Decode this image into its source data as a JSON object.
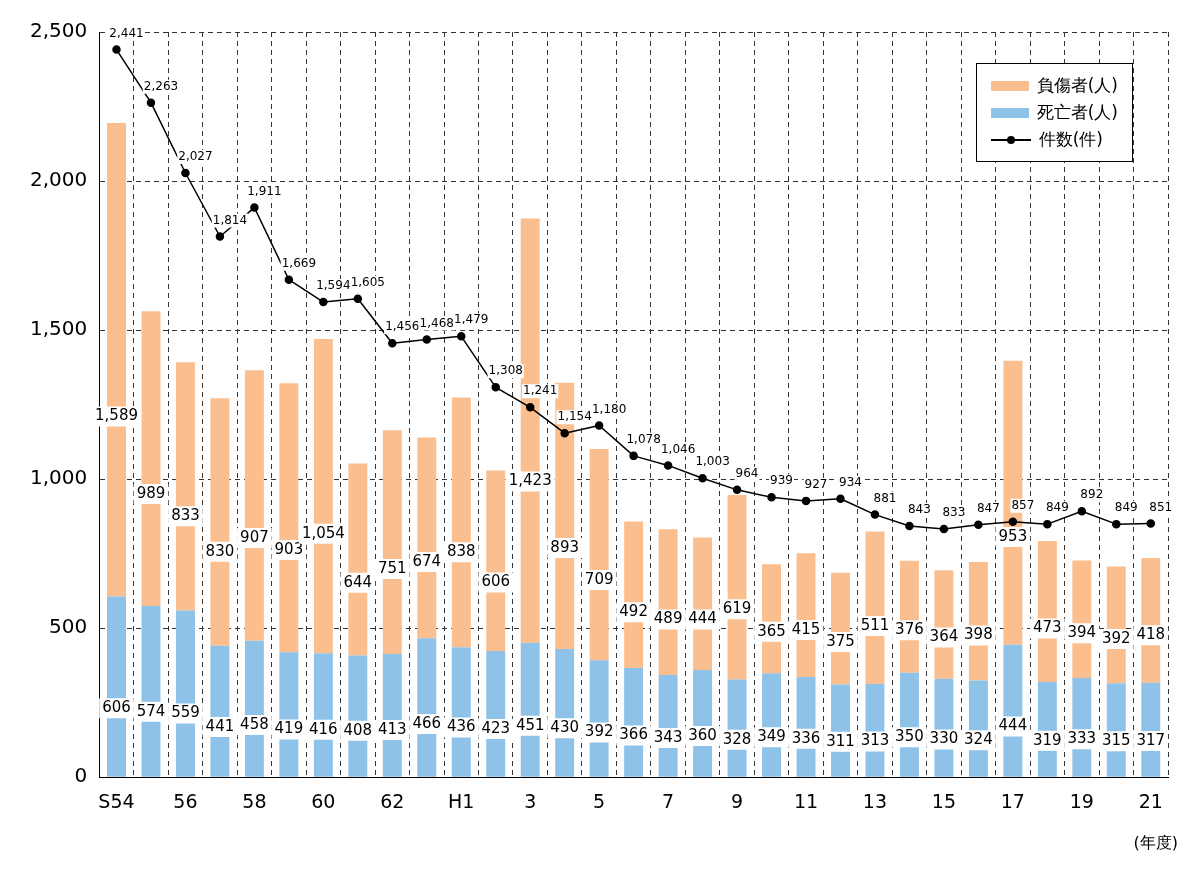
{
  "chart_data": {
    "type": "bar",
    "stacked": true,
    "categories": [
      "S54",
      null,
      "56",
      null,
      "58",
      null,
      "60",
      null,
      "62",
      null,
      "H1",
      null,
      "3",
      null,
      "5",
      null,
      "7",
      null,
      "9",
      null,
      "11",
      null,
      "13",
      null,
      "15",
      null,
      "17",
      null,
      "19",
      null,
      "21"
    ],
    "series": [
      {
        "name": "死亡者(人)",
        "color": "#8fc2e8",
        "values": [
          606,
          574,
          559,
          441,
          458,
          419,
          416,
          408,
          413,
          466,
          436,
          423,
          451,
          430,
          392,
          366,
          343,
          360,
          328,
          349,
          336,
          311,
          313,
          350,
          330,
          324,
          444,
          319,
          333,
          315,
          317
        ],
        "value_labels": [
          "606",
          "574",
          "559",
          "441",
          "458",
          "419",
          "416",
          "408",
          "413",
          "466",
          "436",
          "423",
          "451",
          "430",
          "392",
          "366",
          "343",
          "360",
          "328",
          "349",
          "336",
          "311",
          "313",
          "350",
          "330",
          "324",
          "444",
          "319",
          "333",
          "315",
          "317"
        ]
      },
      {
        "name": "負傷者(人)",
        "color": "#fbbf8f",
        "values": [
          1589,
          989,
          833,
          830,
          907,
          903,
          1054,
          644,
          751,
          674,
          838,
          606,
          1423,
          893,
          709,
          492,
          489,
          444,
          619,
          365,
          415,
          375,
          511,
          376,
          364,
          398,
          953,
          473,
          394,
          392,
          418
        ],
        "value_labels": [
          "1,589",
          "989",
          "833",
          "830",
          "907",
          "903",
          "1,054",
          "644",
          "751",
          "674",
          "838",
          "606",
          "1,423",
          "893",
          "709",
          "492",
          "489",
          "444",
          "619",
          "365",
          "415",
          "375",
          "511",
          "376",
          "364",
          "398",
          "953",
          "473",
          "394",
          "392",
          "418"
        ]
      },
      {
        "name": "件数(件)",
        "type": "line",
        "color": "#000000",
        "marker": "circle",
        "line_style": "solid",
        "values": [
          2441,
          2263,
          2027,
          1814,
          1911,
          1669,
          1594,
          1605,
          1456,
          1468,
          1479,
          1308,
          1241,
          1154,
          1180,
          1078,
          1046,
          1003,
          964,
          939,
          927,
          934,
          881,
          843,
          833,
          847,
          857,
          849,
          892,
          849,
          851
        ],
        "value_labels": [
          "2,441",
          "2,263",
          "2,027",
          "1,814",
          "1,911",
          "1,669",
          "1,594",
          "1,605",
          "1,456",
          "1,468",
          "1,479",
          "1,308",
          "1,241",
          "1,154",
          "1,180",
          "1,078",
          "1,046",
          "1,003",
          "964",
          "939",
          "927",
          "934",
          "881",
          "843",
          "833",
          "847",
          "857",
          "849",
          "892",
          "849",
          "851"
        ]
      }
    ],
    "ylim": [
      0,
      2500
    ],
    "yticks": [
      0,
      {
        "value": 500,
        "label": "500"
      },
      {
        "value": 1000,
        "label": "1,000"
      },
      {
        "value": 1500,
        "label": "1,500"
      },
      {
        "value": 2000,
        "label": "2,000"
      },
      {
        "value": 2500,
        "label": "2,500"
      }
    ],
    "grid": true,
    "legend": "top right",
    "annotations": [
      "(年度)"
    ]
  }
}
